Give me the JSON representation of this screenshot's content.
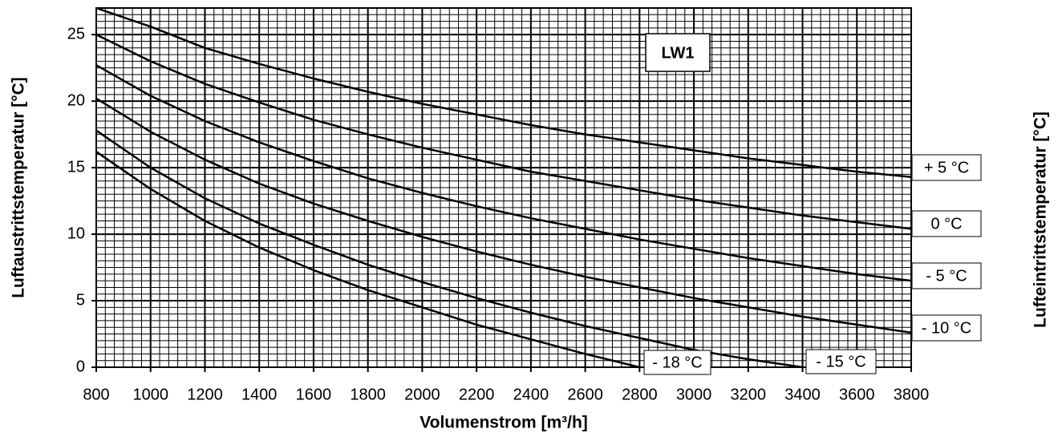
{
  "chart_data": {
    "type": "line",
    "annotation": "LW1",
    "x_label": "Volumenstrom [m³/h]",
    "y_label": "Luftaustrittstemperatur [°C]",
    "y2_label": "Lufteintrittstemperatur [°C]",
    "x": [
      800,
      1000,
      1200,
      1400,
      1600,
      1800,
      2000,
      2200,
      2400,
      2600,
      2800,
      3000,
      3200,
      3400,
      3600,
      3800
    ],
    "series": [
      {
        "name": "+ 5 °C",
        "color": "#000000",
        "values": [
          27.0,
          25.6,
          24.0,
          22.8,
          21.7,
          20.7,
          19.8,
          19.0,
          18.2,
          17.5,
          16.9,
          16.3,
          15.7,
          15.2,
          14.7,
          14.3
        ]
      },
      {
        "name": "0 °C",
        "color": "#000000",
        "values": [
          25.0,
          23.0,
          21.3,
          19.9,
          18.6,
          17.5,
          16.5,
          15.6,
          14.7,
          14.0,
          13.3,
          12.6,
          12.0,
          11.4,
          10.9,
          10.4
        ]
      },
      {
        "name": "-  5 °C",
        "color": "#000000",
        "values": [
          22.7,
          20.4,
          18.5,
          16.9,
          15.5,
          14.2,
          13.1,
          12.1,
          11.2,
          10.4,
          9.6,
          8.9,
          8.2,
          7.6,
          7.0,
          6.5
        ]
      },
      {
        "name": "- 10 °C",
        "color": "#000000",
        "values": [
          20.2,
          17.7,
          15.6,
          13.8,
          12.3,
          11.0,
          9.8,
          8.7,
          7.7,
          6.8,
          6.0,
          5.2,
          4.5,
          3.8,
          3.2,
          2.6
        ]
      },
      {
        "name": "- 15 °C",
        "color": "#000000",
        "values": [
          17.8,
          15.0,
          12.7,
          10.8,
          9.2,
          7.7,
          6.4,
          5.2,
          4.1,
          3.1,
          2.2,
          1.3,
          0.6,
          0,
          null,
          null
        ]
      },
      {
        "name": "- 18 °C",
        "color": "#000000",
        "values": [
          16.2,
          13.4,
          11.0,
          9.0,
          7.3,
          5.8,
          4.5,
          3.2,
          2.1,
          1.0,
          0,
          null,
          null,
          null,
          null,
          null
        ]
      }
    ],
    "xlim": [
      800,
      3800
    ],
    "xticks": [
      800,
      1000,
      1200,
      1400,
      1600,
      1800,
      2000,
      2200,
      2400,
      2600,
      2800,
      3000,
      3200,
      3400,
      3600,
      3800
    ],
    "ylim": [
      0,
      27
    ],
    "yticks": [
      0,
      5,
      10,
      15,
      20,
      25
    ],
    "grid": true,
    "minor_grid": {
      "x": 6,
      "y": 10
    }
  }
}
